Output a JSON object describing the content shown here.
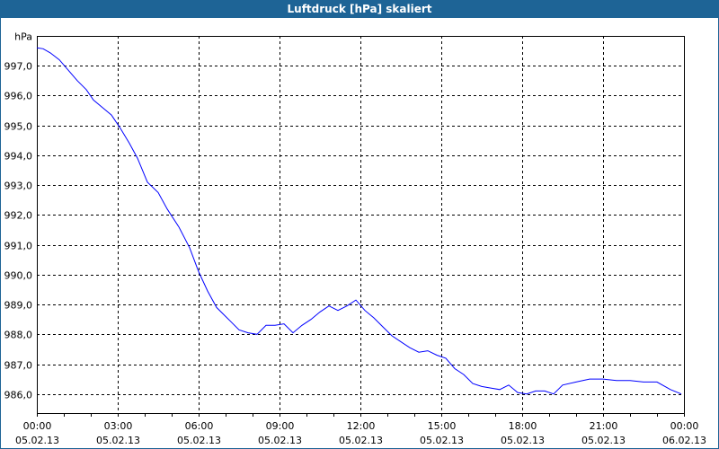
{
  "window": {
    "title": "Luftdruck [hPa] skaliert"
  },
  "chart_data": {
    "type": "line",
    "title": "Luftdruck [hPa] skaliert",
    "ylabel": "hPa",
    "xlabel": "",
    "ylim": [
      985.36,
      998.0
    ],
    "yticks": [
      998,
      997,
      996,
      995,
      994,
      993,
      992,
      991,
      990,
      989,
      988,
      987,
      986
    ],
    "ytick_labels": [
      "hPa",
      "997,0",
      "996,0",
      "995,0",
      "994,0",
      "993,0",
      "992,0",
      "991,0",
      "990,0",
      "989,0",
      "988,0",
      "987,0",
      "986,0"
    ],
    "xlim": [
      "05.02.13 00:00",
      "06.02.13 00:00"
    ],
    "xticks": [
      {
        "time": "00:00",
        "date": "05.02.13"
      },
      {
        "time": "03:00",
        "date": "05.02.13"
      },
      {
        "time": "06:00",
        "date": "05.02.13"
      },
      {
        "time": "09:00",
        "date": "05.02.13"
      },
      {
        "time": "12:00",
        "date": "05.02.13"
      },
      {
        "time": "15:00",
        "date": "05.02.13"
      },
      {
        "time": "18:00",
        "date": "05.02.13"
      },
      {
        "time": "21:00",
        "date": "05.02.13"
      },
      {
        "time": "00:00",
        "date": "06.02.13"
      }
    ],
    "grid": true,
    "colors": {
      "line": "#0000ff",
      "titlebar": "#1e6496",
      "grid": "#000000"
    },
    "series": [
      {
        "date": "05.02.13",
        "x": [
          "00:00",
          "00:14",
          "00:30",
          "00:50",
          "01:10",
          "01:30",
          "01:50",
          "02:06",
          "02:26",
          "02:46",
          "03:06",
          "03:26",
          "03:44",
          "04:06",
          "04:30",
          "04:50",
          "05:16",
          "05:40",
          "06:00",
          "06:20",
          "06:40",
          "07:10",
          "07:30",
          "07:50",
          "08:10",
          "08:30",
          "08:50",
          "09:10",
          "09:30",
          "09:50",
          "10:10",
          "10:30",
          "10:50",
          "11:10",
          "11:30",
          "11:50",
          "12:10",
          "12:30",
          "12:50",
          "13:10",
          "13:30",
          "13:50",
          "14:10",
          "14:30",
          "14:50",
          "15:10",
          "15:30",
          "15:50",
          "16:10",
          "16:30",
          "16:50",
          "17:10",
          "17:30",
          "17:50",
          "18:10",
          "18:30",
          "18:50",
          "19:10",
          "19:30",
          "20:00",
          "20:30",
          "21:00",
          "21:30",
          "22:00",
          "22:30",
          "23:00",
          "23:30",
          "23:54"
        ],
        "y": [
          997.6,
          997.57,
          997.43,
          997.2,
          996.85,
          996.5,
          996.2,
          995.85,
          995.6,
          995.35,
          994.9,
          994.4,
          993.9,
          993.1,
          992.75,
          992.2,
          991.6,
          990.9,
          990.1,
          989.45,
          988.9,
          988.45,
          988.15,
          988.05,
          988.0,
          988.3,
          988.3,
          988.35,
          988.05,
          988.3,
          988.5,
          988.75,
          988.95,
          988.8,
          988.95,
          989.15,
          988.8,
          988.55,
          988.25,
          987.95,
          987.75,
          987.55,
          987.4,
          987.45,
          987.3,
          987.2,
          986.85,
          986.65,
          986.35,
          986.25,
          986.2,
          986.15,
          986.3,
          986.05,
          986.0,
          986.1,
          986.1,
          986.0,
          986.3,
          986.4,
          986.5,
          986.5,
          986.45,
          986.45,
          986.4,
          986.4,
          986.15,
          986.0
        ]
      }
    ]
  }
}
